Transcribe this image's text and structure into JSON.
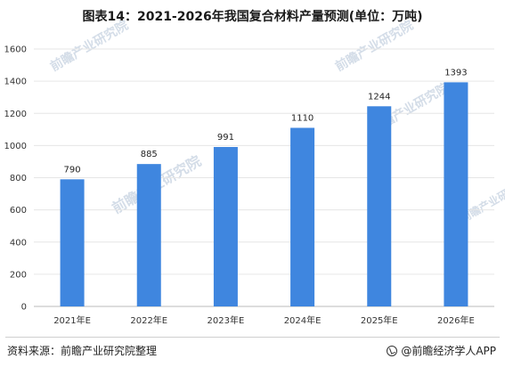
{
  "page": {
    "title": "图表14：2021-2026年我国复合材料产量预测(单位：万吨)",
    "source": "资料来源：前瞻产业研究院整理",
    "brand": "@前瞻经济学人APP",
    "watermark": "前瞻产业研究院"
  },
  "colors": {
    "bar": "#3f86df",
    "grid": "#e6e6e6",
    "axis": "#bbbbbb"
  },
  "chart_data": {
    "type": "bar",
    "title": "图表14：2021-2026年我国复合材料产量预测(单位：万吨)",
    "categories": [
      "2021年E",
      "2022年E",
      "2023年E",
      "2024年E",
      "2025年E",
      "2026年E"
    ],
    "values": [
      790,
      885,
      991,
      1110,
      1244,
      1393
    ],
    "ylim": [
      0,
      1600
    ],
    "yticks": [
      0,
      200,
      400,
      600,
      800,
      1000,
      1200,
      1400,
      1600
    ],
    "grid": true,
    "data_labels": true,
    "legend": false
  }
}
